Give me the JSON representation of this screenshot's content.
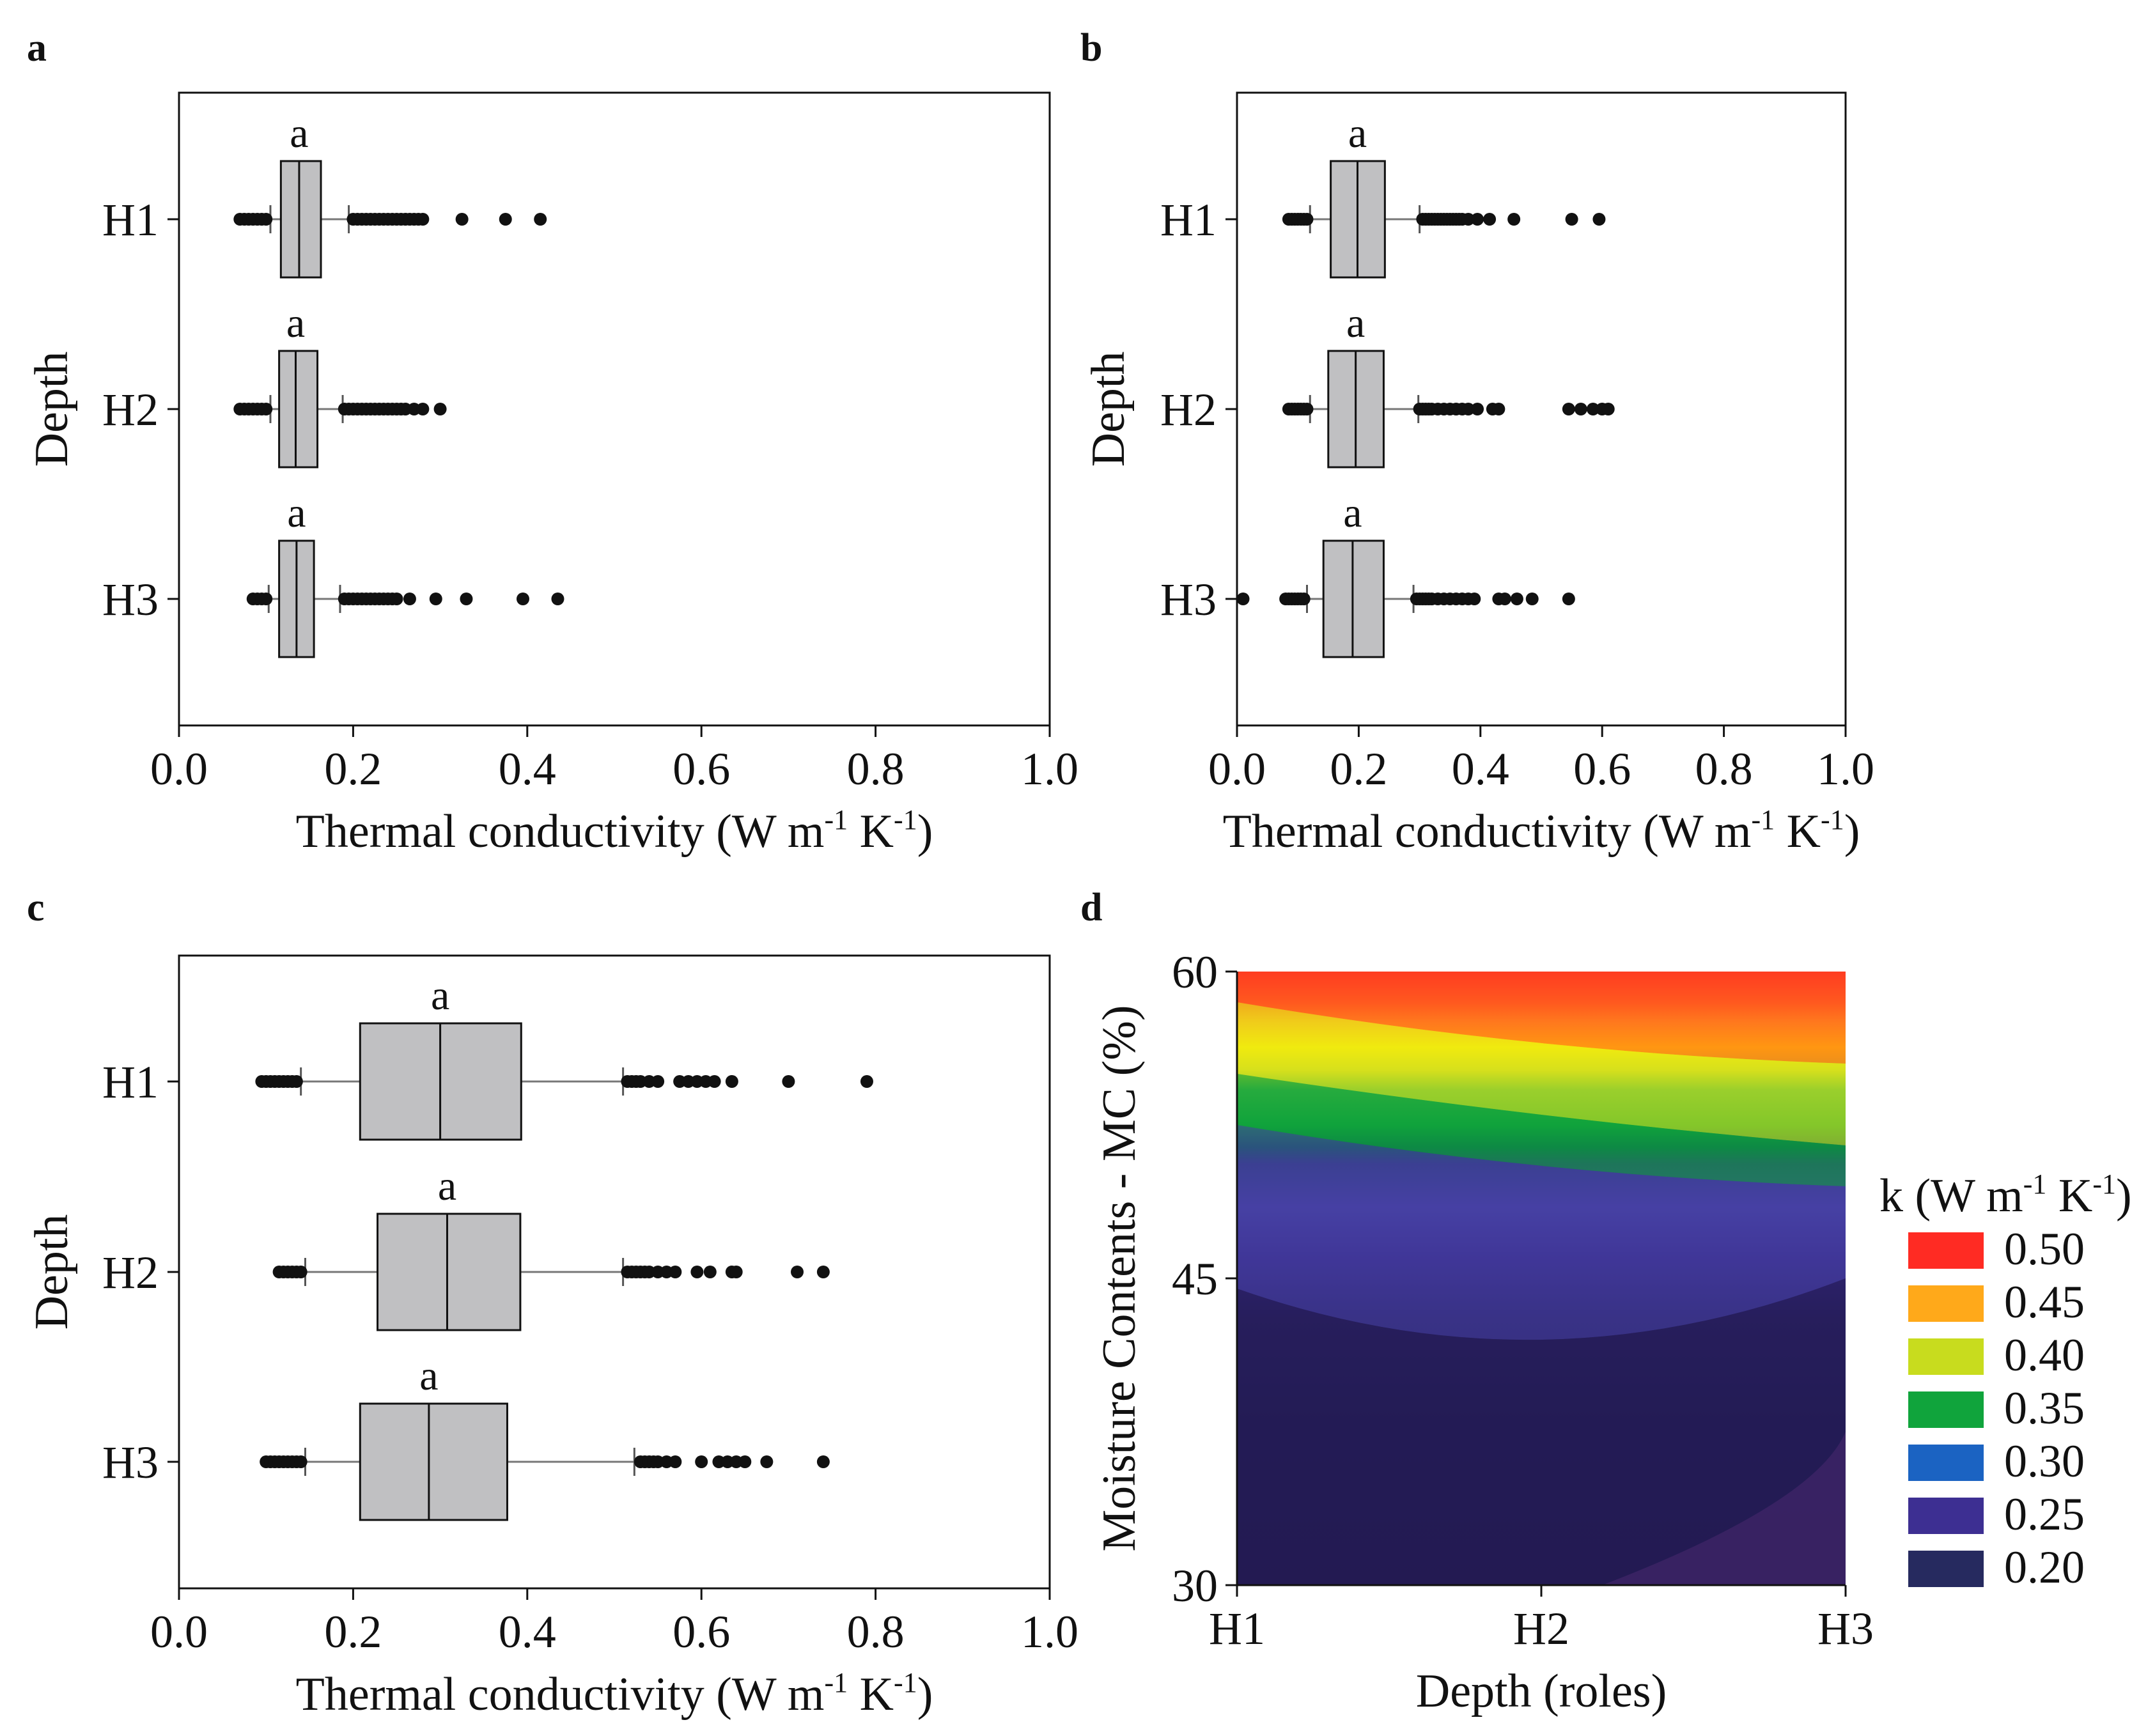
{
  "figure": {
    "panel_labels": [
      "a",
      "b",
      "c",
      "d"
    ]
  },
  "chart_data": [
    {
      "type": "box",
      "panel": "a",
      "orientation": "horizontal",
      "xlabel": "Thermal conductivity (W m",
      "xlabel_sup1": "-1",
      "xlabel_mid": " K",
      "xlabel_sup2": "-1",
      "xlabel_end": ")",
      "ylabel": "Depth",
      "xlim": [
        0.0,
        1.0
      ],
      "xticks": [
        "0.0",
        "0.2",
        "0.4",
        "0.6",
        "0.8",
        "1.0"
      ],
      "categories": [
        "H1",
        "H2",
        "H3"
      ],
      "boxes": [
        {
          "category": "H1",
          "group_letter": "a",
          "whisker_low": 0.105,
          "q1": 0.117,
          "median": 0.138,
          "q3": 0.163,
          "whisker_high": 0.195,
          "outliers": [
            0.07,
            0.075,
            0.08,
            0.085,
            0.09,
            0.095,
            0.1,
            0.2,
            0.205,
            0.21,
            0.215,
            0.22,
            0.225,
            0.23,
            0.235,
            0.24,
            0.245,
            0.25,
            0.255,
            0.26,
            0.265,
            0.27,
            0.275,
            0.28,
            0.325,
            0.375,
            0.415
          ]
        },
        {
          "category": "H2",
          "group_letter": "a",
          "whisker_low": 0.105,
          "q1": 0.115,
          "median": 0.134,
          "q3": 0.159,
          "whisker_high": 0.188,
          "outliers": [
            0.07,
            0.075,
            0.08,
            0.085,
            0.09,
            0.095,
            0.1,
            0.19,
            0.195,
            0.2,
            0.205,
            0.21,
            0.215,
            0.22,
            0.225,
            0.23,
            0.235,
            0.24,
            0.245,
            0.25,
            0.255,
            0.26,
            0.27,
            0.28,
            0.3
          ]
        },
        {
          "category": "H3",
          "group_letter": "a",
          "whisker_low": 0.103,
          "q1": 0.115,
          "median": 0.135,
          "q3": 0.155,
          "whisker_high": 0.185,
          "outliers": [
            0.085,
            0.09,
            0.095,
            0.1,
            0.19,
            0.195,
            0.2,
            0.205,
            0.21,
            0.215,
            0.22,
            0.225,
            0.23,
            0.235,
            0.24,
            0.245,
            0.25,
            0.265,
            0.295,
            0.33,
            0.395,
            0.435
          ]
        }
      ]
    },
    {
      "type": "box",
      "panel": "b",
      "orientation": "horizontal",
      "xlabel": "Thermal conductivity (W m",
      "xlabel_sup1": "-1",
      "xlabel_mid": " K",
      "xlabel_sup2": "-1",
      "xlabel_end": ")",
      "ylabel": "Depth",
      "xlim": [
        0.0,
        1.0
      ],
      "xticks": [
        "0.0",
        "0.2",
        "0.4",
        "0.6",
        "0.8",
        "1.0"
      ],
      "categories": [
        "H1",
        "H2",
        "H3"
      ],
      "boxes": [
        {
          "category": "H1",
          "group_letter": "a",
          "whisker_low": 0.12,
          "q1": 0.154,
          "median": 0.198,
          "q3": 0.243,
          "whisker_high": 0.3,
          "outliers": [
            0.085,
            0.09,
            0.095,
            0.1,
            0.105,
            0.11,
            0.115,
            0.305,
            0.31,
            0.315,
            0.32,
            0.325,
            0.33,
            0.335,
            0.34,
            0.345,
            0.35,
            0.355,
            0.36,
            0.365,
            0.37,
            0.38,
            0.395,
            0.415,
            0.455,
            0.55,
            0.595
          ]
        },
        {
          "category": "H2",
          "group_letter": "a",
          "whisker_low": 0.12,
          "q1": 0.15,
          "median": 0.195,
          "q3": 0.241,
          "whisker_high": 0.298,
          "outliers": [
            0.085,
            0.09,
            0.095,
            0.1,
            0.105,
            0.11,
            0.115,
            0.3,
            0.305,
            0.31,
            0.315,
            0.32,
            0.33,
            0.34,
            0.35,
            0.36,
            0.37,
            0.38,
            0.395,
            0.42,
            0.43,
            0.545,
            0.565,
            0.585,
            0.6,
            0.61
          ]
        },
        {
          "category": "H3",
          "group_letter": "a",
          "whisker_low": 0.115,
          "q1": 0.142,
          "median": 0.19,
          "q3": 0.241,
          "whisker_high": 0.29,
          "outliers": [
            0.01,
            0.08,
            0.085,
            0.09,
            0.095,
            0.1,
            0.105,
            0.11,
            0.295,
            0.3,
            0.305,
            0.31,
            0.315,
            0.32,
            0.33,
            0.34,
            0.35,
            0.36,
            0.37,
            0.38,
            0.39,
            0.43,
            0.44,
            0.46,
            0.485,
            0.545
          ]
        }
      ]
    },
    {
      "type": "box",
      "panel": "c",
      "orientation": "horizontal",
      "xlabel": "Thermal conductivity (W m",
      "xlabel_sup1": "-1",
      "xlabel_mid": " K",
      "xlabel_sup2": "-1",
      "xlabel_end": ")",
      "ylabel": "Depth",
      "xlim": [
        0.0,
        1.0
      ],
      "xticks": [
        "0.0",
        "0.2",
        "0.4",
        "0.6",
        "0.8",
        "1.0"
      ],
      "categories": [
        "H1",
        "H2",
        "H3"
      ],
      "boxes": [
        {
          "category": "H1",
          "group_letter": "a",
          "whisker_low": 0.14,
          "q1": 0.208,
          "median": 0.3,
          "q3": 0.393,
          "whisker_high": 0.51,
          "outliers": [
            0.095,
            0.1,
            0.105,
            0.11,
            0.115,
            0.12,
            0.125,
            0.13,
            0.135,
            0.515,
            0.52,
            0.525,
            0.53,
            0.54,
            0.55,
            0.575,
            0.585,
            0.595,
            0.605,
            0.615,
            0.635,
            0.7,
            0.79
          ]
        },
        {
          "category": "H2",
          "group_letter": "a",
          "whisker_low": 0.145,
          "q1": 0.228,
          "median": 0.308,
          "q3": 0.392,
          "whisker_high": 0.51,
          "outliers": [
            0.115,
            0.12,
            0.125,
            0.13,
            0.135,
            0.14,
            0.515,
            0.52,
            0.525,
            0.53,
            0.535,
            0.54,
            0.55,
            0.56,
            0.57,
            0.595,
            0.61,
            0.635,
            0.64,
            0.71,
            0.74
          ]
        },
        {
          "category": "H3",
          "group_letter": "a",
          "whisker_low": 0.145,
          "q1": 0.208,
          "median": 0.287,
          "q3": 0.377,
          "whisker_high": 0.523,
          "outliers": [
            0.1,
            0.105,
            0.11,
            0.115,
            0.12,
            0.125,
            0.13,
            0.135,
            0.14,
            0.53,
            0.535,
            0.54,
            0.545,
            0.55,
            0.56,
            0.57,
            0.6,
            0.62,
            0.63,
            0.64,
            0.65,
            0.675,
            0.74
          ]
        }
      ]
    },
    {
      "type": "heatmap",
      "panel": "d",
      "subtype": "filled-contour",
      "xlabel": "Depth (roles)",
      "ylabel": "Moisture Contents - MC (%)",
      "x_categories": [
        "H1",
        "H2",
        "H3"
      ],
      "ylim": [
        30,
        60
      ],
      "yticks": [
        "30",
        "45",
        "60"
      ],
      "z_contour_boundaries_y": {
        "note_y_values_in_percent_at_H1_H2_H3": true,
        "z_0.45_band_top": [
          58.5,
          56.5,
          55.5
        ],
        "z_0.35_band_top": [
          55.0,
          53.0,
          51.5
        ],
        "z_0.30_band_top": [
          52.5,
          50.5,
          49.5
        ],
        "z_0.25_band_top": [
          44.5,
          42.0,
          45.0
        ]
      },
      "color_stops": [
        {
          "value": 0.18,
          "color": "#1c1a4a"
        },
        {
          "value": 0.2,
          "color": "#231c55"
        },
        {
          "value": 0.25,
          "color": "#3a2c8c"
        },
        {
          "value": 0.28,
          "color": "#4842a6"
        },
        {
          "value": 0.3,
          "color": "#1f4a7a"
        },
        {
          "value": 0.32,
          "color": "#0b6b4f"
        },
        {
          "value": 0.35,
          "color": "#10a43c"
        },
        {
          "value": 0.4,
          "color": "#c8dc1e"
        },
        {
          "value": 0.43,
          "color": "#fff200"
        },
        {
          "value": 0.45,
          "color": "#ffa91a"
        },
        {
          "value": 0.5,
          "color": "#ff2b23"
        }
      ],
      "legend": {
        "title": "k (W m",
        "title_sup1": "-1",
        "title_mid": " K",
        "title_sup2": "-1",
        "title_end": ")",
        "placement": "right",
        "entries": [
          {
            "label": "0.50",
            "color": "#ff2b23"
          },
          {
            "label": "0.45",
            "color": "#ffa91a"
          },
          {
            "label": "0.40",
            "color": "#c8dc1e"
          },
          {
            "label": "0.35",
            "color": "#10a43c"
          },
          {
            "label": "0.30",
            "color": "#1b63c2"
          },
          {
            "label": "0.25",
            "color": "#3d2f92"
          },
          {
            "label": "0.20",
            "color": "#262a5f"
          }
        ]
      }
    }
  ]
}
